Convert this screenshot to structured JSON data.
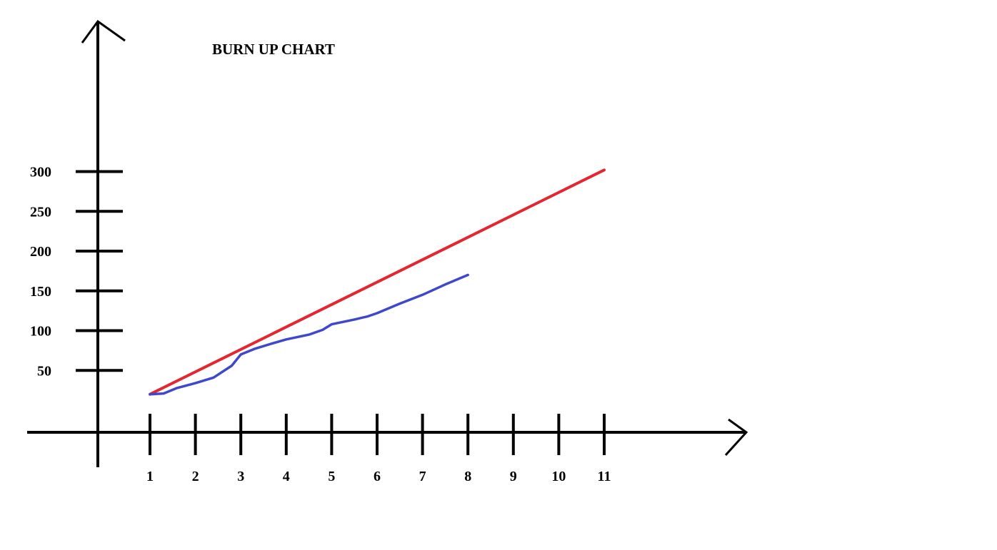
{
  "chart_data": {
    "type": "line",
    "title": "BURN UP CHART",
    "xlabel": "",
    "ylabel": "",
    "x_ticks": [
      "1",
      "2",
      "3",
      "4",
      "5",
      "6",
      "7",
      "8",
      "9",
      "10",
      "11"
    ],
    "y_ticks": [
      "50",
      "100",
      "150",
      "200",
      "250",
      "300"
    ],
    "xlim": [
      1,
      11
    ],
    "ylim": [
      0,
      300
    ],
    "grid": false,
    "series": [
      {
        "color": "#e3262f",
        "points": [
          [
            1,
            20
          ],
          [
            11,
            302
          ]
        ]
      },
      {
        "color": "#3f48cc",
        "points": [
          [
            1,
            20
          ],
          [
            1.3,
            21
          ],
          [
            1.6,
            28
          ],
          [
            2,
            34
          ],
          [
            2.4,
            41
          ],
          [
            2.8,
            56
          ],
          [
            3,
            70
          ],
          [
            3.3,
            77
          ],
          [
            3.7,
            84
          ],
          [
            4,
            89
          ],
          [
            4.5,
            95
          ],
          [
            4.8,
            101
          ],
          [
            5,
            108
          ],
          [
            5.5,
            114
          ],
          [
            5.8,
            118
          ],
          [
            6,
            122
          ],
          [
            6.5,
            134
          ],
          [
            7,
            145
          ],
          [
            7.5,
            158
          ],
          [
            8,
            170
          ]
        ]
      }
    ]
  }
}
